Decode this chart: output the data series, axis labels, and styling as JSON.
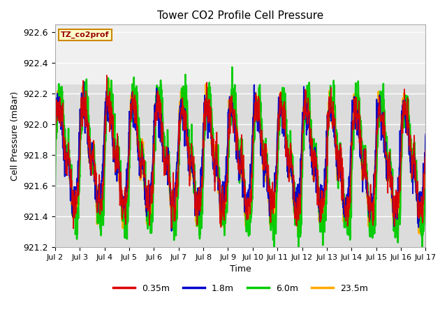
{
  "title": "Tower CO2 Profile Cell Pressure",
  "ylabel": "Cell Pressure (mBar)",
  "xlabel": "Time",
  "annotation_text": "TZ_co2prof",
  "annotation_bg": "#FFFFCC",
  "annotation_text_color": "#990000",
  "annotation_border_color": "#CC8800",
  "ylim": [
    921.2,
    922.65
  ],
  "series_labels": [
    "0.35m",
    "1.8m",
    "6.0m",
    "23.5m"
  ],
  "series_colors": [
    "#DD0000",
    "#0000CC",
    "#00CC00",
    "#FFAA00"
  ],
  "bg_color": "#E8E8E8",
  "plot_bg_color": "#DCDCDC",
  "upper_bg_color": "#F0F0F0",
  "fig_bg": "#FFFFFF",
  "yticks": [
    921.2,
    921.4,
    921.6,
    921.8,
    922.0,
    922.2,
    922.4,
    922.6
  ],
  "xtick_labels": [
    "Jul 2",
    "Jul 3",
    "Jul 4",
    "Jul 5",
    "Jul 6",
    "Jul 7",
    "Jul 8",
    "Jul 9",
    "Jul 10",
    "Jul 11",
    "Jul 12",
    "Jul 13",
    "Jul 14",
    "Jul 15",
    "Jul 16",
    "Jul 17"
  ],
  "n_points": 1500,
  "seed": 42,
  "base_mean": 921.8,
  "linewidth": 1.5
}
